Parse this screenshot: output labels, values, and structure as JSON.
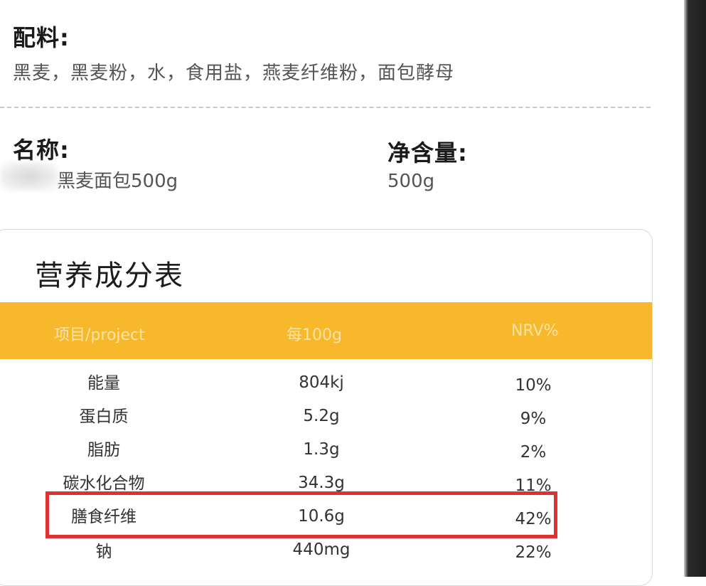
{
  "ingredients": {
    "label": "配料:",
    "value": "黑麦，黑麦粉，水，食用盐，燕麦纤维粉，面包酵母"
  },
  "product": {
    "name_label": "名称:",
    "name_value": "黑麦面包500g",
    "net_label": "净含量:",
    "net_value": "500g"
  },
  "nutrition": {
    "title": "营养成分表",
    "headers": {
      "item": "项目/project",
      "per100": "每100g",
      "nrv": "NRV%"
    },
    "rows": [
      {
        "name": "能量",
        "per100": "804kj",
        "nrv": "10%"
      },
      {
        "name": "蛋白质",
        "per100": "5.2g",
        "nrv": "9%"
      },
      {
        "name": "脂肪",
        "per100": "1.3g",
        "nrv": "2%"
      },
      {
        "name": "碳水化合物",
        "per100": "34.3g",
        "nrv": "11%"
      },
      {
        "name": "膳食纤维",
        "per100": "10.6g",
        "nrv": "42%"
      },
      {
        "name": "钠",
        "per100": "440mg",
        "nrv": "22%"
      }
    ],
    "highlighted_row": "膳食纤维"
  },
  "colors": {
    "header_bg": "#f7b92b",
    "header_text": "#fbe3a6",
    "highlight_border": "#e03131"
  }
}
